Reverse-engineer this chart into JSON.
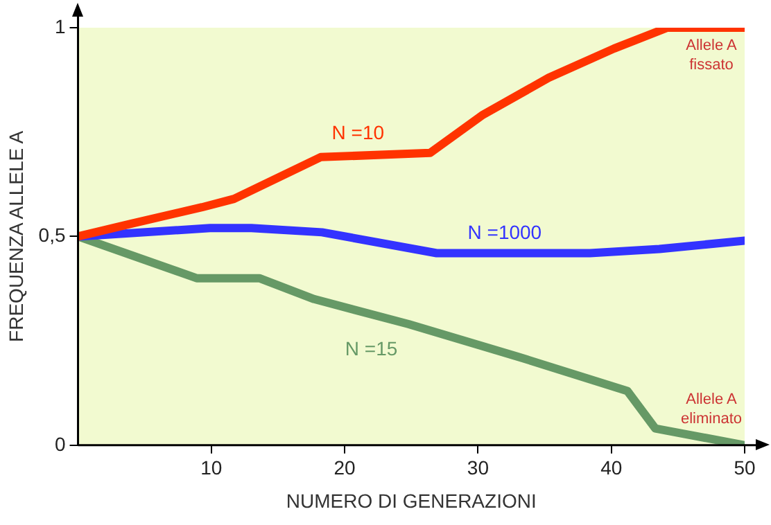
{
  "chart_data": {
    "type": "line",
    "xlabel": "NUMERO DI GENERAZIONI",
    "ylabel": "FREQUENZA ALLELE A",
    "xlim": [
      0,
      50
    ],
    "xticks": [
      10,
      20,
      30,
      40,
      50
    ],
    "ylim": [
      0,
      1
    ],
    "yticks": [
      0,
      {
        "value": 0.5,
        "label": "0,5"
      },
      1
    ],
    "grid": false,
    "legend": false,
    "marker": "none",
    "line_style": "solid",
    "series": [
      {
        "name": "N =10",
        "color": "#ff3300",
        "x": [
          0,
          3.9,
          9.3,
          11.7,
          18.2,
          26.4,
          30.3,
          35.3,
          40.2,
          44.2,
          50
        ],
        "values": [
          0.5,
          0.53,
          0.57,
          0.59,
          0.69,
          0.7,
          0.79,
          0.88,
          0.95,
          1,
          1
        ]
      },
      {
        "name": "N =1000",
        "color": "#3333ff",
        "x": [
          0,
          9.9,
          13,
          18.3,
          26.9,
          38.4,
          43.6,
          50
        ],
        "values": [
          0.5,
          0.52,
          0.52,
          0.51,
          0.46,
          0.46,
          0.47,
          0.49
        ]
      },
      {
        "name": "N =15",
        "color": "#669966",
        "x": [
          0,
          8.9,
          13.6,
          17.7,
          24.8,
          33.2,
          41.2,
          43.3,
          50
        ],
        "values": [
          0.5,
          0.4,
          0.4,
          0.35,
          0.29,
          0.21,
          0.13,
          0.04,
          0
        ]
      }
    ],
    "annotations": [
      "Allele A fissato",
      "Allele A eliminato"
    ]
  }
}
